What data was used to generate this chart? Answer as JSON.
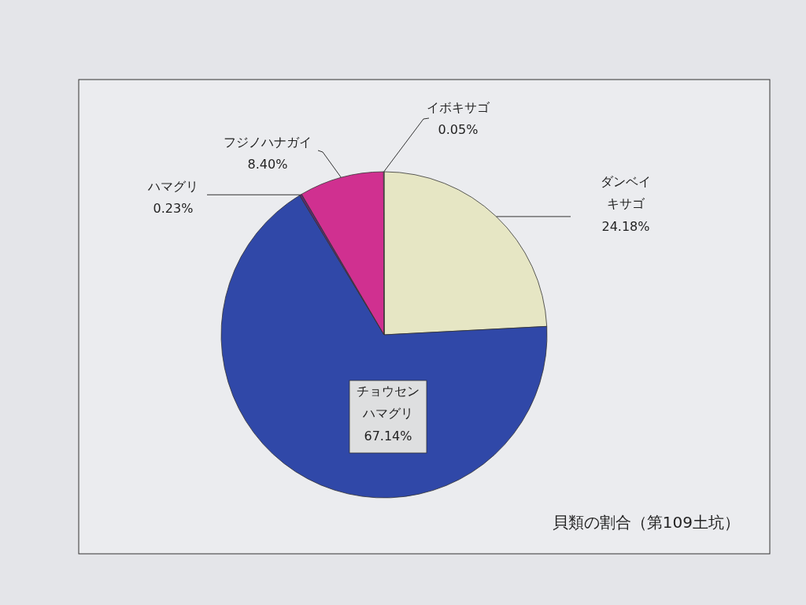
{
  "chart_data": {
    "type": "pie",
    "title": "貝類の割合（第109土坑）",
    "categories": [
      "ダンベイキサゴ",
      "チョウセンハマグリ",
      "ハマグリ",
      "フジノハナガイ",
      "イボキサゴ"
    ],
    "values": [
      24.18,
      67.14,
      0.23,
      8.4,
      0.05
    ],
    "colors": [
      "#e6e6c4",
      "#3048a8",
      "#5a2a70",
      "#d03090",
      "#f2f2f2"
    ],
    "value_labels": [
      "24.18%",
      "67.14%",
      "0.23%",
      "8.40%",
      "0.05%"
    ]
  }
}
